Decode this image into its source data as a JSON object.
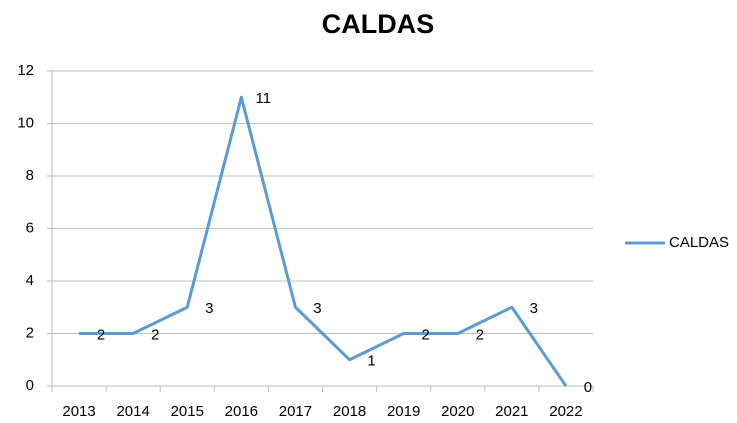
{
  "chart_data": {
    "type": "line",
    "title": "CALDAS",
    "categories": [
      "2013",
      "2014",
      "2015",
      "2016",
      "2017",
      "2018",
      "2019",
      "2020",
      "2021",
      "2022"
    ],
    "series": [
      {
        "name": "CALDAS",
        "color": "#5b9bd5",
        "values": [
          2,
          2,
          3,
          11,
          3,
          1,
          2,
          2,
          3,
          0
        ]
      }
    ],
    "ylim": [
      0,
      12
    ],
    "yticks": [
      0,
      2,
      4,
      6,
      8,
      10,
      12
    ],
    "grid": true,
    "legend": "right",
    "data_labels": true
  }
}
